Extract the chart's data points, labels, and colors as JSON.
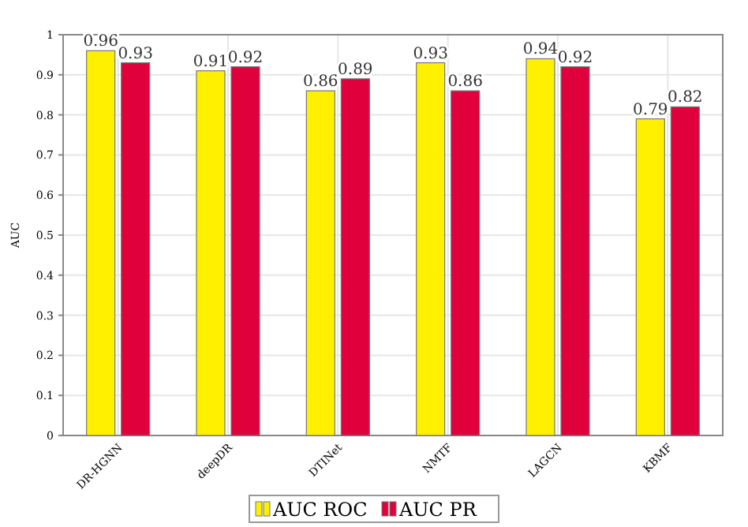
{
  "chart_data": {
    "type": "bar",
    "ylabel": "AUC",
    "categories": [
      "DR-HGNN",
      "deepDR",
      "DTINet",
      "NMTF",
      "LAGCN",
      "KBMF"
    ],
    "series": [
      {
        "name": "AUC ROC",
        "color": "#fff000",
        "values": [
          0.96,
          0.91,
          0.86,
          0.93,
          0.94,
          0.79
        ]
      },
      {
        "name": "AUC PR",
        "color": "#e0003c",
        "values": [
          0.93,
          0.92,
          0.89,
          0.86,
          0.92,
          0.82
        ]
      }
    ],
    "ylim": [
      0,
      1
    ],
    "yticks": [
      0,
      0.1,
      0.2,
      0.3,
      0.4,
      0.5,
      0.6,
      0.7,
      0.8,
      0.9,
      1
    ],
    "grid": true,
    "legend": "bottom",
    "data_labels": true
  }
}
